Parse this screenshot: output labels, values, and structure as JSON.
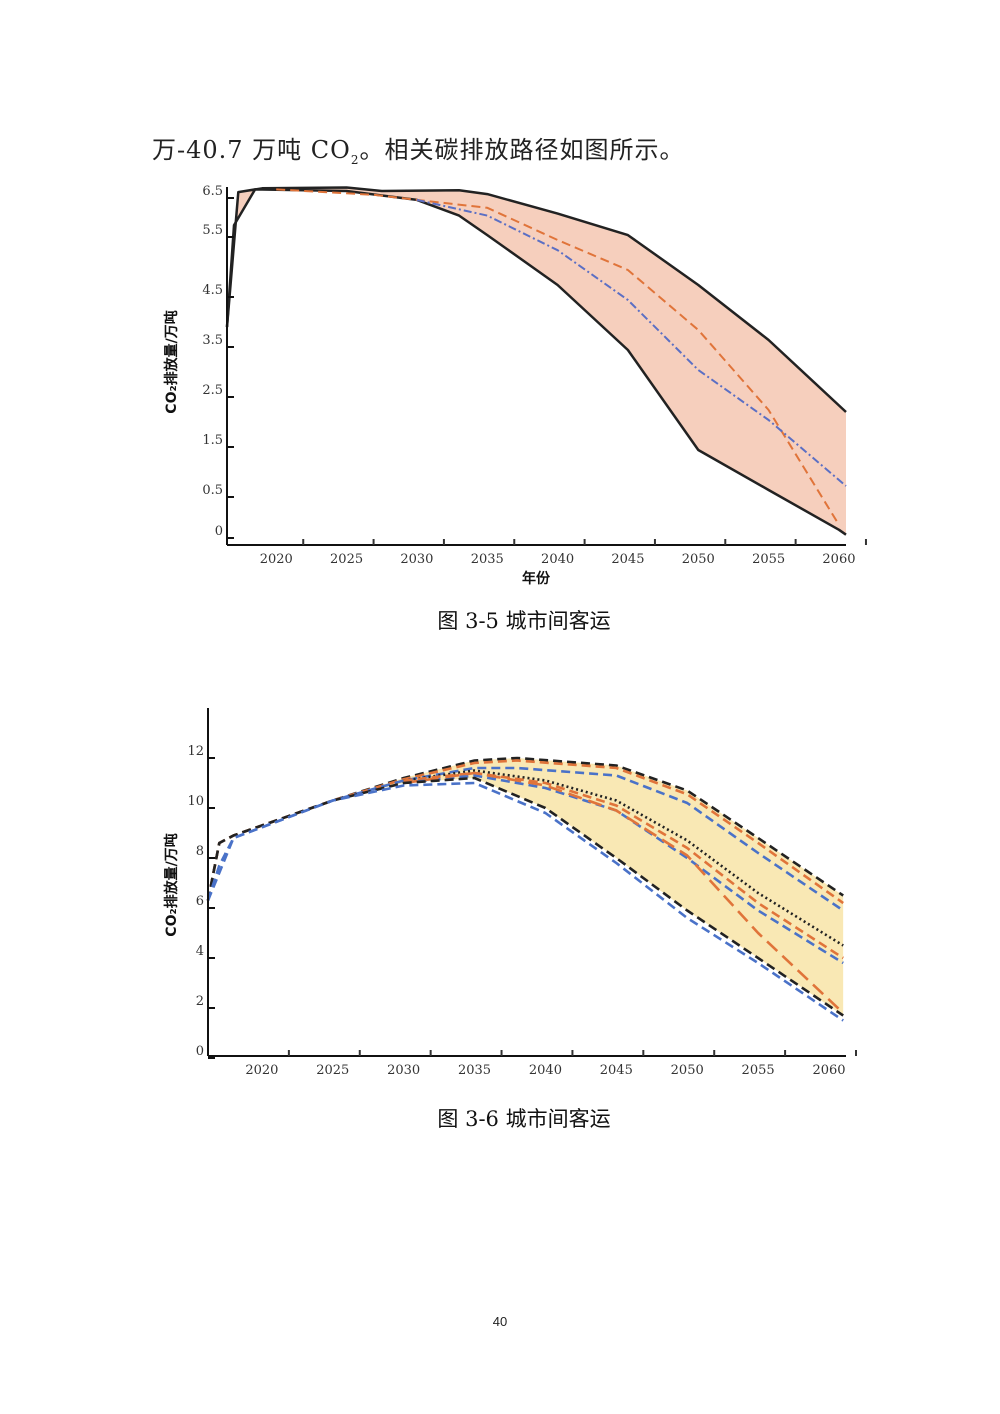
{
  "paragraph": {
    "text_before": "万-40.7 万吨 CO",
    "sub": "2",
    "text_after": "。相关碳排放路径如图所示。"
  },
  "captions": [
    "图 3-5  城市间客运",
    "图 3-6  城市间客运"
  ],
  "page_number": "40",
  "chart_data": [
    {
      "type": "area",
      "title": "图 3-5 城市间客运",
      "xlabel": "年份",
      "ylabel": "CO₂排放量/万吨",
      "xticks": [
        2020,
        2025,
        2030,
        2035,
        2040,
        2045,
        2050,
        2055,
        2060
      ],
      "yticks": [
        "0",
        "0.5",
        "1.5",
        "2.5",
        "3.5",
        "4.5",
        "5.5",
        "6.5"
      ],
      "ytick_values": [
        0,
        0.5,
        1.5,
        2.5,
        3.5,
        4.5,
        5.5,
        6.5
      ],
      "xlim": [
        2016.5,
        2060.5
      ],
      "fill_color": "#f6cfbd",
      "band": {
        "upper": "upper-bound",
        "lower": "lower-bound"
      },
      "series": [
        {
          "name": "upper-bound",
          "color": "#222222",
          "style": "solid",
          "x": [
            2016.5,
            2017.3,
            2019,
            2025,
            2027.5,
            2033,
            2035,
            2040,
            2045,
            2050,
            2055,
            2060.5
          ],
          "y": [
            3.9,
            6.65,
            6.75,
            6.77,
            6.68,
            6.7,
            6.6,
            6.1,
            5.55,
            4.7,
            3.64,
            2.2
          ]
        },
        {
          "name": "lower-bound",
          "color": "#222222",
          "style": "solid",
          "x": [
            2016.5,
            2017,
            2018.5,
            2025,
            2030,
            2033,
            2035,
            2040,
            2045,
            2050,
            2055,
            2060,
            2060.5
          ],
          "y": [
            3.9,
            5.8,
            6.72,
            6.68,
            6.45,
            6.05,
            5.55,
            4.7,
            3.44,
            1.44,
            0.64,
            0.1,
            0.04
          ]
        },
        {
          "name": "scenario-orange",
          "color": "#e0743a",
          "style": "dash",
          "x": [
            2020,
            2027,
            2030,
            2035,
            2040,
            2045,
            2050,
            2055,
            2060
          ],
          "y": [
            6.72,
            6.58,
            6.45,
            6.25,
            5.45,
            4.95,
            3.84,
            2.24,
            0.16
          ]
        },
        {
          "name": "scenario-blue",
          "color": "#5b6fc4",
          "style": "dashdot",
          "x": [
            2030,
            2035,
            2040,
            2045,
            2050,
            2055,
            2060.5
          ],
          "y": [
            6.45,
            6.05,
            5.28,
            4.44,
            3.04,
            2.04,
            0.72
          ]
        }
      ]
    },
    {
      "type": "area",
      "title": "图 3-6 城市间客运",
      "xlabel": "",
      "ylabel": "CO₂排放量/万吨",
      "xticks": [
        2020,
        2025,
        2030,
        2035,
        2040,
        2045,
        2050,
        2055,
        2060
      ],
      "yticks": [
        "0",
        "2",
        "4",
        "6",
        "8",
        "10",
        "12"
      ],
      "ytick_values": [
        0,
        2,
        4,
        6,
        8,
        10,
        12
      ],
      "xlim": [
        2016.2,
        2061.2
      ],
      "fill_color": "#f9e8b4",
      "band": {
        "upper": "upper-black",
        "lower": "lower-black"
      },
      "series": [
        {
          "name": "upper-black",
          "color": "#222222",
          "style": "dash",
          "x": [
            2016.2,
            2017,
            2018,
            2025,
            2030,
            2035,
            2038,
            2045,
            2050,
            2055,
            2061
          ],
          "y": [
            6.3,
            8.6,
            8.9,
            10.3,
            11.2,
            11.9,
            12.0,
            11.7,
            10.7,
            8.8,
            6.5
          ]
        },
        {
          "name": "upper-orange",
          "color": "#e0743a",
          "style": "dash",
          "x": [
            2016.2,
            2017,
            2018,
            2025,
            2030,
            2035,
            2038,
            2045,
            2050,
            2055,
            2061
          ],
          "y": [
            6.3,
            8.6,
            8.9,
            10.3,
            11.15,
            11.8,
            11.9,
            11.6,
            10.55,
            8.6,
            6.2
          ]
        },
        {
          "name": "upper-blue",
          "color": "#4a72c8",
          "style": "dash",
          "x": [
            2016.2,
            2018,
            2025,
            2030,
            2035,
            2038,
            2045,
            2050,
            2055,
            2061
          ],
          "y": [
            6.3,
            8.8,
            10.3,
            11.1,
            11.6,
            11.6,
            11.3,
            10.2,
            8.2,
            5.9
          ]
        },
        {
          "name": "mid-black-dotted",
          "color": "#222222",
          "style": "dot",
          "x": [
            2030,
            2035,
            2040,
            2045,
            2050,
            2055,
            2061
          ],
          "y": [
            11.1,
            11.5,
            11.1,
            10.3,
            8.7,
            6.6,
            4.5
          ]
        },
        {
          "name": "mid-orange",
          "color": "#e0743a",
          "style": "dash",
          "x": [
            2030,
            2035,
            2040,
            2045,
            2050,
            2055,
            2061
          ],
          "y": [
            11.1,
            11.4,
            11.0,
            10.1,
            8.4,
            6.2,
            4.0
          ]
        },
        {
          "name": "mid-blue",
          "color": "#4a72c8",
          "style": "dash",
          "x": [
            2030,
            2035,
            2040,
            2045,
            2050,
            2055,
            2061
          ],
          "y": [
            11.0,
            11.3,
            10.8,
            9.9,
            8.0,
            5.9,
            3.8
          ]
        },
        {
          "name": "steep-orange",
          "color": "#e0743a",
          "style": "longdash",
          "x": [
            2030,
            2035,
            2040,
            2045,
            2050,
            2055,
            2061
          ],
          "y": [
            11.0,
            11.4,
            10.9,
            9.9,
            8.1,
            5.0,
            1.8
          ]
        },
        {
          "name": "lower-black",
          "color": "#222222",
          "style": "dash",
          "x": [
            2016.2,
            2017,
            2018,
            2025,
            2030,
            2035,
            2040,
            2045,
            2050,
            2055,
            2061
          ],
          "y": [
            6.3,
            8.6,
            8.9,
            10.3,
            11.0,
            11.2,
            10.0,
            8.0,
            5.9,
            4.0,
            1.7
          ]
        },
        {
          "name": "lower-blue",
          "color": "#4a72c8",
          "style": "dash",
          "x": [
            2016.2,
            2017,
            2018,
            2025,
            2030,
            2035,
            2040,
            2045,
            2050,
            2055,
            2061
          ],
          "y": [
            6.3,
            7.7,
            8.8,
            10.3,
            10.9,
            11.0,
            9.8,
            7.8,
            5.6,
            3.8,
            1.5
          ]
        }
      ]
    }
  ]
}
